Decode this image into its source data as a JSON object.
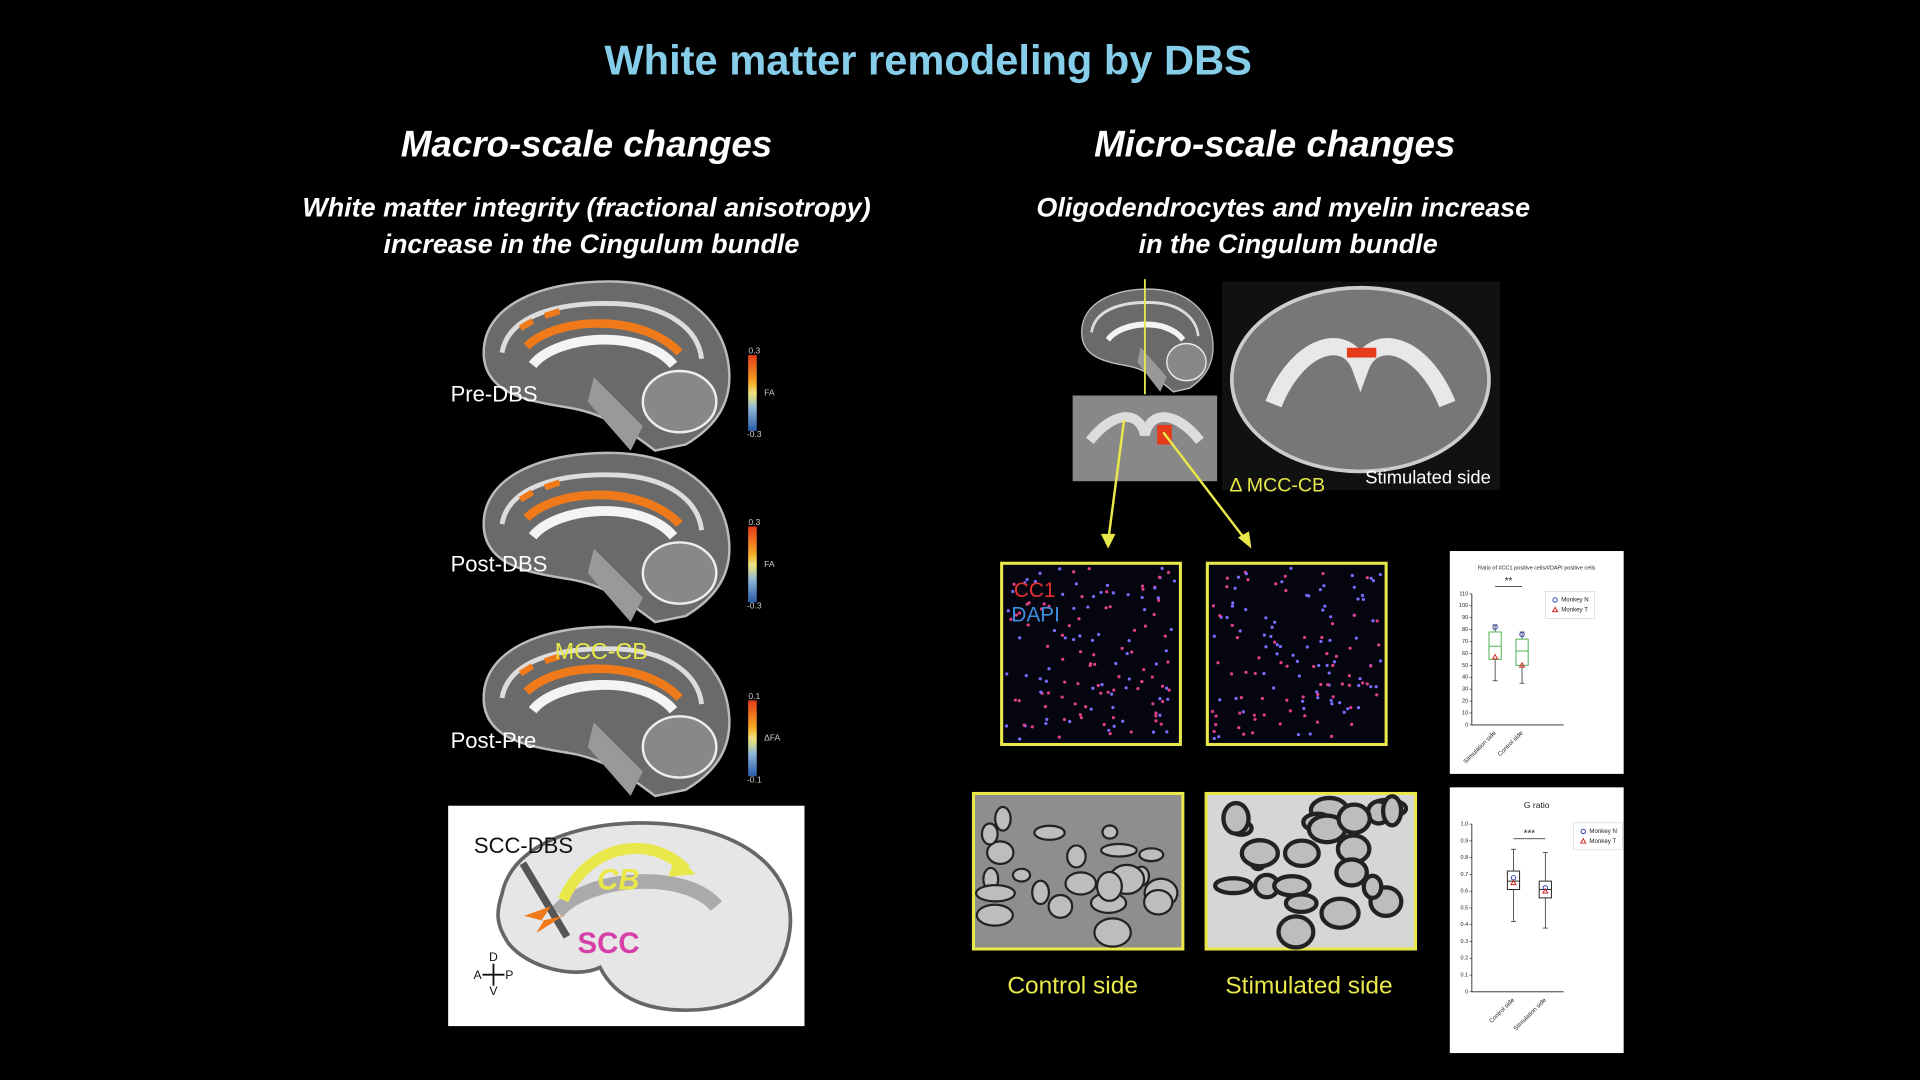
{
  "title": "White matter remodeling by DBS",
  "macro": {
    "heading": "Macro-scale changes",
    "subtitle": [
      "White matter integrity (fractional anisotropy)",
      "increase in the Cingulum bundle"
    ],
    "panels": [
      {
        "label": "Pre-DBS",
        "scale": {
          "max": "0.3",
          "mid": "0",
          "min": "-0.3",
          "unit": "FA"
        }
      },
      {
        "label": "Post-DBS",
        "scale": {
          "max": "0.3",
          "mid": "0",
          "min": "-0.3",
          "unit": "FA"
        }
      },
      {
        "label": "Post-Pre",
        "annotation": "MCC-CB",
        "scale": {
          "max": "0.1",
          "mid": "0",
          "min": "-0.1",
          "unit": "ΔFA"
        }
      }
    ],
    "diagram": {
      "electrode": "SCC-DBS",
      "tract": "CB",
      "target": "SCC",
      "axes": {
        "top": "D",
        "left": "A",
        "right": "P",
        "bottom": "V"
      }
    }
  },
  "micro": {
    "heading": "Micro-scale changes",
    "subtitle": [
      "Oligodendrocytes and myelin increase",
      "in the Cingulum bundle"
    ],
    "region": "Δ MCC-CB",
    "side": "Stimulated side",
    "stains": [
      "CC1",
      "DAPI"
    ],
    "em_labels": [
      "Control side",
      "Stimulated side"
    ]
  },
  "plots": [
    {
      "title": "Ratio of #CC1 positive cells/#DAPI positive cells",
      "ylim": [
        0,
        110
      ],
      "yticks": [
        0,
        10,
        20,
        30,
        40,
        50,
        60,
        70,
        80,
        90,
        100,
        110
      ],
      "categories": [
        "Stimulation side",
        "Control side"
      ],
      "legend": [
        "Monkey N",
        "Monkey T"
      ],
      "significance": "**",
      "boxes": [
        {
          "min": 37,
          "q1": 55,
          "median": 66,
          "q3": 78,
          "max": 84
        },
        {
          "min": 35,
          "q1": 50,
          "median": 62,
          "q3": 72,
          "max": 78
        }
      ],
      "monkey_n": [
        82,
        76
      ],
      "monkey_t": [
        57,
        50
      ]
    },
    {
      "title": "G ratio",
      "ylim": [
        0,
        1
      ],
      "yticks": [
        0,
        0.1,
        0.2,
        0.3,
        0.4,
        0.5,
        0.6,
        0.7,
        0.8,
        0.9,
        {
          "value": 1,
          "label": "1.0"
        }
      ],
      "categories": [
        "Control side",
        "Stimulation side"
      ],
      "legend": [
        "Monkey N",
        "Monkey T"
      ],
      "significance": "***",
      "boxes": [
        {
          "min": 0.42,
          "q1": 0.61,
          "median": 0.66,
          "q3": 0.72,
          "max": 0.85
        },
        {
          "min": 0.38,
          "q1": 0.56,
          "median": 0.61,
          "q3": 0.66,
          "max": 0.83
        }
      ],
      "monkey_n": [
        0.68,
        0.62
      ],
      "monkey_t": [
        0.65,
        0.6
      ]
    }
  ]
}
